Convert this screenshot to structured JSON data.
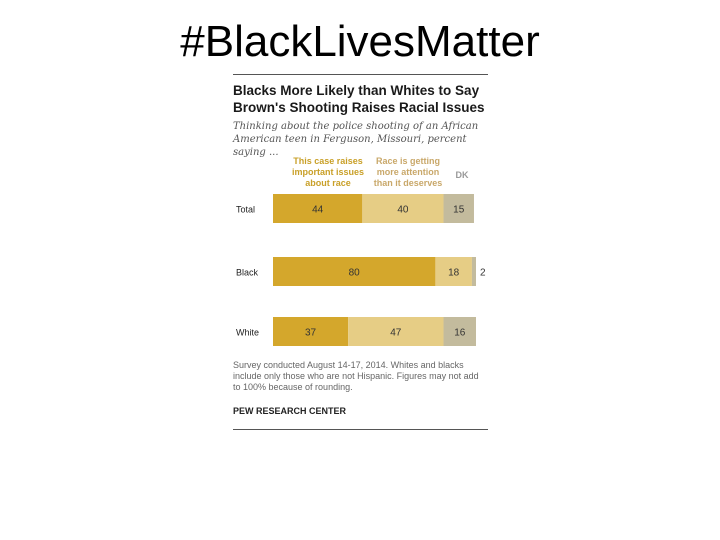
{
  "slide": {
    "title": "#BlackLivesMatter"
  },
  "colors": {
    "raises_issues": "#d4a72c",
    "more_attention": "#e6cd85",
    "dk": "#c3bb9d",
    "legend_raises": "#c9a028",
    "legend_attention": "#c9a86a",
    "legend_dk": "#999999",
    "bar_text": "#333333"
  },
  "chart_data": {
    "type": "bar",
    "orientation": "horizontal",
    "stacked": true,
    "title": "Blacks More Likely than Whites to Say Brown's Shooting Raises Racial Issues",
    "subtitle": "Thinking about the police shooting of an African American teen in Ferguson, Missouri, percent saying ...",
    "categories": [
      "Total",
      "Black",
      "White"
    ],
    "series": [
      {
        "name": "This case raises important issues about race",
        "values": [
          44,
          80,
          37
        ]
      },
      {
        "name": "Race is getting more attention than it deserves",
        "values": [
          40,
          18,
          47
        ]
      },
      {
        "name": "DK",
        "values": [
          15,
          2,
          16
        ]
      }
    ],
    "legend_position": "top",
    "note": "Survey conducted August 14-17, 2014. Whites and blacks include only those who are not Hispanic. Figures may not add to 100% because of rounding.",
    "source": "PEW RESEARCH CENTER"
  }
}
